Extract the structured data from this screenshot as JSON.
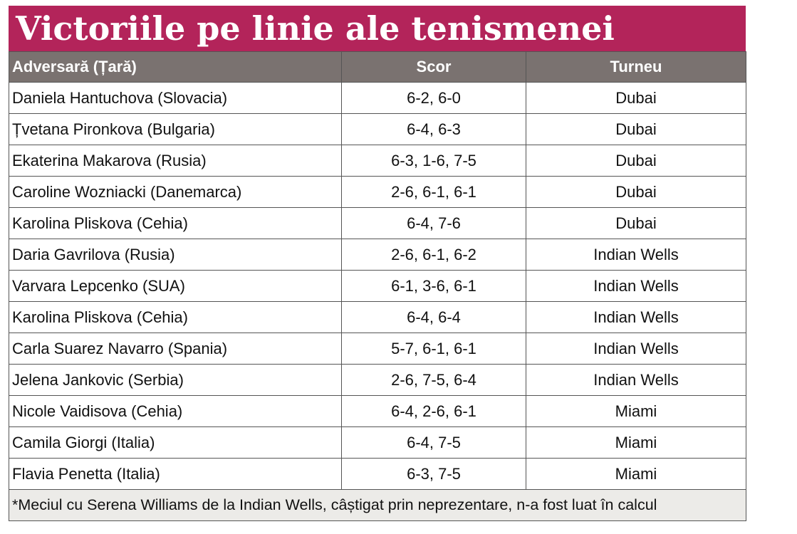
{
  "header": {
    "title": "Victoriile pe linie ale tenismenei"
  },
  "table": {
    "columns": [
      "Adversară (Țară)",
      "Scor",
      "Turneu"
    ],
    "rows": [
      [
        "Daniela Hantuchova (Slovacia)",
        "6-2, 6-0",
        "Dubai"
      ],
      [
        "Țvetana Pironkova (Bulgaria)",
        "6-4, 6-3",
        "Dubai"
      ],
      [
        "Ekaterina Makarova (Rusia)",
        "6-3, 1-6, 7-5",
        "Dubai"
      ],
      [
        "Caroline Wozniacki (Danemarca)",
        "2-6, 6-1, 6-1",
        "Dubai"
      ],
      [
        "Karolina Pliskova (Cehia)",
        "6-4, 7-6",
        "Dubai"
      ],
      [
        "Daria Gavrilova (Rusia)",
        "2-6, 6-1, 6-2",
        "Indian Wells"
      ],
      [
        "Varvara Lepcenko (SUA)",
        "6-1, 3-6, 6-1",
        "Indian Wells"
      ],
      [
        "Karolina Pliskova (Cehia)",
        "6-4, 6-4",
        "Indian Wells"
      ],
      [
        "Carla Suarez Navarro (Spania)",
        "5-7, 6-1, 6-1",
        "Indian Wells"
      ],
      [
        "Jelena Jankovic (Serbia)",
        "2-6, 7-5, 6-4",
        "Indian Wells"
      ],
      [
        "Nicole Vaidisova (Cehia)",
        "6-4, 2-6, 6-1",
        "Miami"
      ],
      [
        "Camila Giorgi (Italia)",
        "6-4, 7-5",
        "Miami"
      ],
      [
        "Flavia Penetta (Italia)",
        "6-3, 7-5",
        "Miami"
      ]
    ]
  },
  "footnote": "*Meciul cu Serena Williams de la Indian Wells, câștigat prin neprezentare, n-a fost luat în calcul"
}
